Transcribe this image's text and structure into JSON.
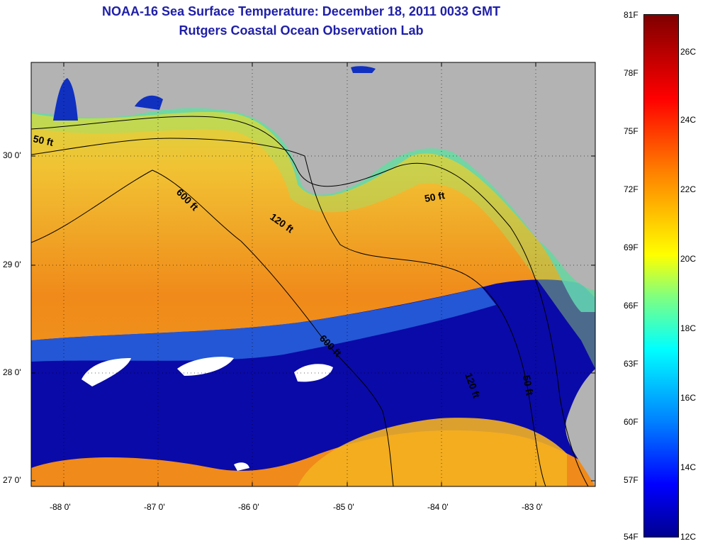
{
  "title": "NOAA-16 Sea Surface Temperature:  December 18, 2011 0033 GMT",
  "subtitle": "Rutgers Coastal Ocean Observation Lab",
  "lat_labels": [
    "30 0'",
    "29 0'",
    "28 0'",
    "27 0'"
  ],
  "lon_labels": [
    "-88 0'",
    "-87 0'",
    "-86 0'",
    "-85 0'",
    "-84 0'",
    "-83 0'"
  ],
  "contour_labels": [
    "50 ft",
    "600 ft",
    "120 ft",
    "50 ft",
    "600 ft",
    "120 ft",
    "50 ft"
  ],
  "colorbar": {
    "f_labels": [
      "81F",
      "78F",
      "75F",
      "72F",
      "69F",
      "66F",
      "63F",
      "60F",
      "57F",
      "54F"
    ],
    "c_labels": [
      "26C",
      "24C",
      "22C",
      "20C",
      "18C",
      "16C",
      "14C",
      "12C"
    ]
  },
  "colors": {
    "land": "#b3b3b3",
    "warm": "#f08a1a",
    "cold": "#0a0aa8",
    "mid": "#e8e22a",
    "cloud": "#ffffff",
    "title": "#1f1fa8"
  }
}
